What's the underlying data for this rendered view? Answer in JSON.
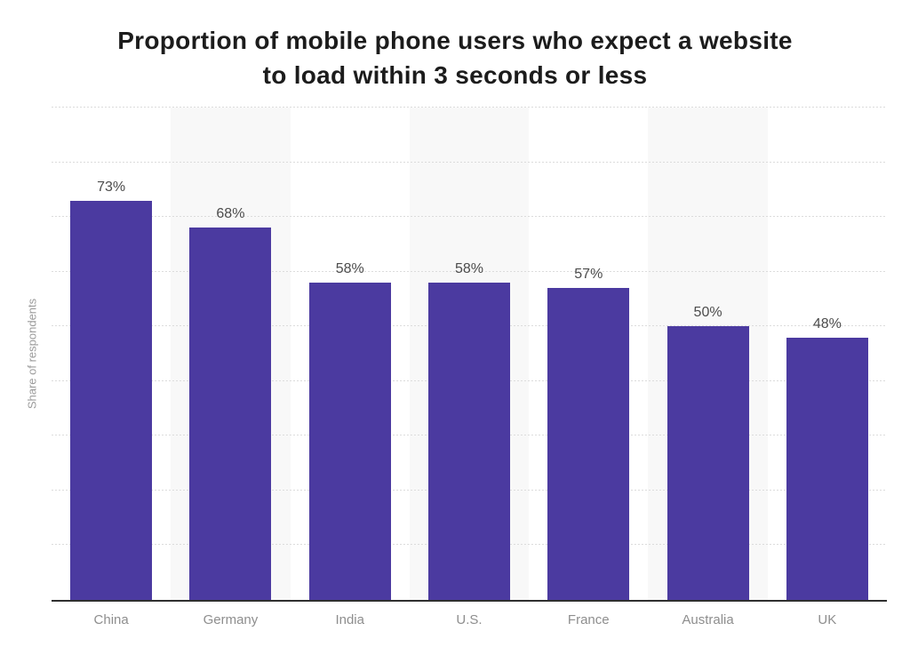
{
  "page_title": {
    "line1": "Proportion of mobile phone users who expect a website",
    "line2": "to load within 3 seconds or less"
  },
  "chart_data": {
    "type": "bar",
    "title": "Proportion of mobile phone users who expect a website to load within 3 seconds or less",
    "categories": [
      "China",
      "Germany",
      "India",
      "U.S.",
      "France",
      "Australia",
      "UK"
    ],
    "values": [
      73,
      68,
      58,
      58,
      57,
      50,
      48
    ],
    "value_labels": [
      "73%",
      "68%",
      "58%",
      "58%",
      "57%",
      "50%",
      "48%"
    ],
    "xlabel": "",
    "ylabel": "Share of respondents",
    "ylim": [
      0,
      90
    ],
    "grid": {
      "horizontal": true,
      "style": "dotted",
      "interval_pct": 10
    },
    "legend": "none",
    "plot_background": "alternating vertical bands, odd bands shaded",
    "colors": {
      "bar": "#4b3aa0",
      "band_stripe": "#f8f8f8",
      "gridline": "#dcdcdc",
      "axis_line": "#2f2f2f",
      "value_label": "#4c4c4c",
      "category_label": "#8e8e8e",
      "ylabel_color": "#9b9b9b",
      "title": "#1c1c1c",
      "background": "#ffffff"
    }
  }
}
